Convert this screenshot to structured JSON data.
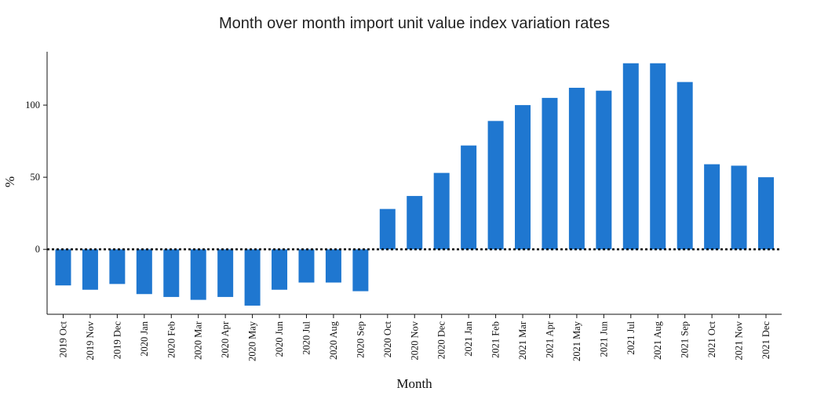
{
  "colors": {
    "bar": "#1f77d0",
    "axis": "#111111",
    "zero_line": "#000000",
    "background": "#ffffff"
  },
  "chart_data": {
    "type": "bar",
    "title": "Month over month import unit value index variation rates",
    "xlabel": "Month",
    "ylabel": "%",
    "ylim": [
      -45,
      137
    ],
    "yticks": [
      0,
      50,
      100
    ],
    "grid": false,
    "legend": "none",
    "zero_line": "dotted",
    "categories": [
      "2019 Oct",
      "2019 Nov",
      "2019 Dec",
      "2020 Jan",
      "2020 Feb",
      "2020 Mar",
      "2020 Apr",
      "2020 May",
      "2020 Jun",
      "2020 Jul",
      "2020 Aug",
      "2020 Sep",
      "2020 Oct",
      "2020 Nov",
      "2020 Dec",
      "2021 Jan",
      "2021 Feb",
      "2021 Mar",
      "2021 Apr",
      "2021 May",
      "2021 Jun",
      "2021 Jul",
      "2021 Aug",
      "2021 Sep",
      "2021 Oct",
      "2021 Nov",
      "2021 Dec"
    ],
    "values": [
      -25,
      -28,
      -24,
      -31,
      -33,
      -35,
      -33,
      -39,
      -28,
      -23,
      -23,
      -29,
      28,
      37,
      53,
      72,
      89,
      100,
      105,
      112,
      110,
      129,
      129,
      116,
      59,
      58,
      50
    ]
  }
}
